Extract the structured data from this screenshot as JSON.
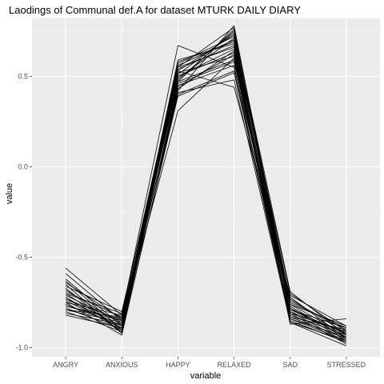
{
  "chart_data": {
    "type": "line",
    "title": "Laodings of Communal def.A for dataset MTURK DAILY DIARY",
    "xlabel": "variable",
    "ylabel": "value",
    "categories": [
      "ANGRY",
      "ANXIOUS",
      "HAPPY",
      "RELAXED",
      "SAD",
      "STRESSED"
    ],
    "ylim": [
      -1.05,
      0.82
    ],
    "yticks": [
      -1.0,
      -0.5,
      0.0,
      0.5
    ],
    "ytick_labels": [
      "-1.0",
      "-0.5",
      "0.0",
      "0.5"
    ],
    "grid": true,
    "legend": "none",
    "colors": {
      "panel": "#ebebeb",
      "grid_major": "#ffffff",
      "grid_minor": "#f5f5f5",
      "line": "#000000",
      "tick_text": "#4d4d4d"
    },
    "series": [
      {
        "values": [
          -0.56,
          -0.82,
          0.67,
          0.55,
          -0.72,
          -0.95
        ]
      },
      {
        "values": [
          -0.59,
          -0.85,
          0.31,
          0.6,
          -0.79,
          -0.92
        ]
      },
      {
        "values": [
          -0.62,
          -0.88,
          0.42,
          0.78,
          -0.8,
          -0.97
        ]
      },
      {
        "values": [
          -0.64,
          -0.84,
          0.47,
          0.76,
          -0.75,
          -0.89
        ]
      },
      {
        "values": [
          -0.65,
          -0.92,
          0.39,
          0.52,
          -0.85,
          -0.97
        ]
      },
      {
        "values": [
          -0.66,
          -0.8,
          0.51,
          0.74,
          -0.69,
          -0.93
        ]
      },
      {
        "values": [
          -0.68,
          -0.87,
          0.55,
          0.66,
          -0.83,
          -0.9
        ]
      },
      {
        "values": [
          -0.69,
          -0.83,
          0.49,
          0.71,
          -0.78,
          -0.96
        ]
      },
      {
        "values": [
          -0.7,
          -0.9,
          0.44,
          0.62,
          -0.87,
          -0.84
        ]
      },
      {
        "values": [
          -0.71,
          -0.86,
          0.58,
          0.69,
          -0.73,
          -0.92
        ]
      },
      {
        "values": [
          -0.72,
          -0.91,
          0.53,
          0.73,
          -0.81,
          -0.98
        ]
      },
      {
        "values": [
          -0.73,
          -0.85,
          0.46,
          0.58,
          -0.76,
          -0.88
        ]
      },
      {
        "values": [
          -0.74,
          -0.89,
          0.5,
          0.65,
          -0.84,
          -0.94
        ]
      },
      {
        "values": [
          -0.75,
          -0.82,
          0.56,
          0.7,
          -0.7,
          -0.91
        ]
      },
      {
        "values": [
          -0.75,
          -0.93,
          0.41,
          0.48,
          -0.86,
          -0.96
        ]
      },
      {
        "values": [
          -0.76,
          -0.88,
          0.54,
          0.67,
          -0.79,
          -0.89
        ]
      },
      {
        "values": [
          -0.77,
          -0.84,
          0.48,
          0.75,
          -0.77,
          -0.95
        ]
      },
      {
        "values": [
          -0.78,
          -0.9,
          0.52,
          0.61,
          -0.82,
          -0.93
        ]
      },
      {
        "values": [
          -0.79,
          -0.86,
          0.57,
          0.72,
          -0.74,
          -0.9
        ]
      },
      {
        "values": [
          -0.8,
          -0.91,
          0.45,
          0.56,
          -0.85,
          -0.97
        ]
      },
      {
        "values": [
          -0.81,
          -0.87,
          0.59,
          0.68,
          -0.8,
          -0.92
        ]
      },
      {
        "values": [
          -0.82,
          -0.89,
          0.43,
          0.64,
          -0.83,
          -0.95
        ]
      },
      {
        "values": [
          -0.7,
          -0.81,
          0.53,
          0.44,
          -0.71,
          -0.88
        ]
      },
      {
        "values": [
          -0.67,
          -0.92,
          0.5,
          0.63,
          -0.86,
          -0.99
        ]
      },
      {
        "values": [
          -0.73,
          -0.88,
          0.55,
          0.77,
          -0.78,
          -0.94
        ]
      },
      {
        "values": [
          -0.77,
          -0.85,
          0.4,
          0.53,
          -0.81,
          -0.91
        ]
      },
      {
        "values": [
          -0.63,
          -0.9,
          0.56,
          0.7,
          -0.84,
          -0.96
        ]
      },
      {
        "values": [
          -0.79,
          -0.83,
          0.47,
          0.59,
          -0.76,
          -0.93
        ]
      }
    ]
  }
}
